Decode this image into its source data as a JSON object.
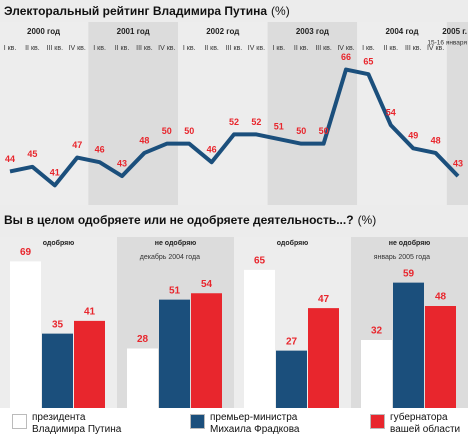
{
  "chart_data": [
    {
      "type": "line",
      "title": "Электоральный рейтинг Владимира Путина",
      "title_unit": "(%)",
      "years": [
        "2000 год",
        "2001 год",
        "2002 год",
        "2003 год",
        "2004 год",
        "2005 г."
      ],
      "categories": [
        "I кв.",
        "II кв.",
        "III кв.",
        "IV кв.",
        "I кв.",
        "II кв.",
        "III кв.",
        "IV кв.",
        "I кв.",
        "II кв.",
        "III кв.",
        "IV кв.",
        "I кв.",
        "II кв.",
        "III кв.",
        "IV кв.",
        "I кв.",
        "II кв.",
        "III кв.",
        "IV кв.",
        "15-16 января"
      ],
      "values": [
        44,
        45,
        41,
        47,
        46,
        43,
        48,
        50,
        50,
        46,
        52,
        52,
        51,
        50,
        50,
        66,
        65,
        54,
        49,
        48,
        43
      ],
      "color": "#1b4f7c",
      "label_color": "#e8262d",
      "ylim": [
        40,
        70
      ]
    },
    {
      "type": "bar",
      "title": "Вы в целом одобряете или не одобряете деятельность...?",
      "title_unit": "(%)",
      "periods": [
        "декабрь 2004 года",
        "январь 2005 года"
      ],
      "categories": [
        "одобряю",
        "не одобряю",
        "одобряю",
        "не одобряю"
      ],
      "series": [
        {
          "name": "президента Владимира Путина",
          "color": "#ffffff",
          "values": [
            69,
            28,
            65,
            32
          ]
        },
        {
          "name": "премьер-министра Михаила Фрадкова",
          "color": "#1b4f7c",
          "values": [
            35,
            51,
            27,
            59
          ]
        },
        {
          "name": "губернатора вашей области",
          "color": "#e8262d",
          "values": [
            41,
            54,
            47,
            48
          ]
        }
      ],
      "label_color": "#e8262d",
      "ylim": [
        0,
        72
      ]
    }
  ]
}
